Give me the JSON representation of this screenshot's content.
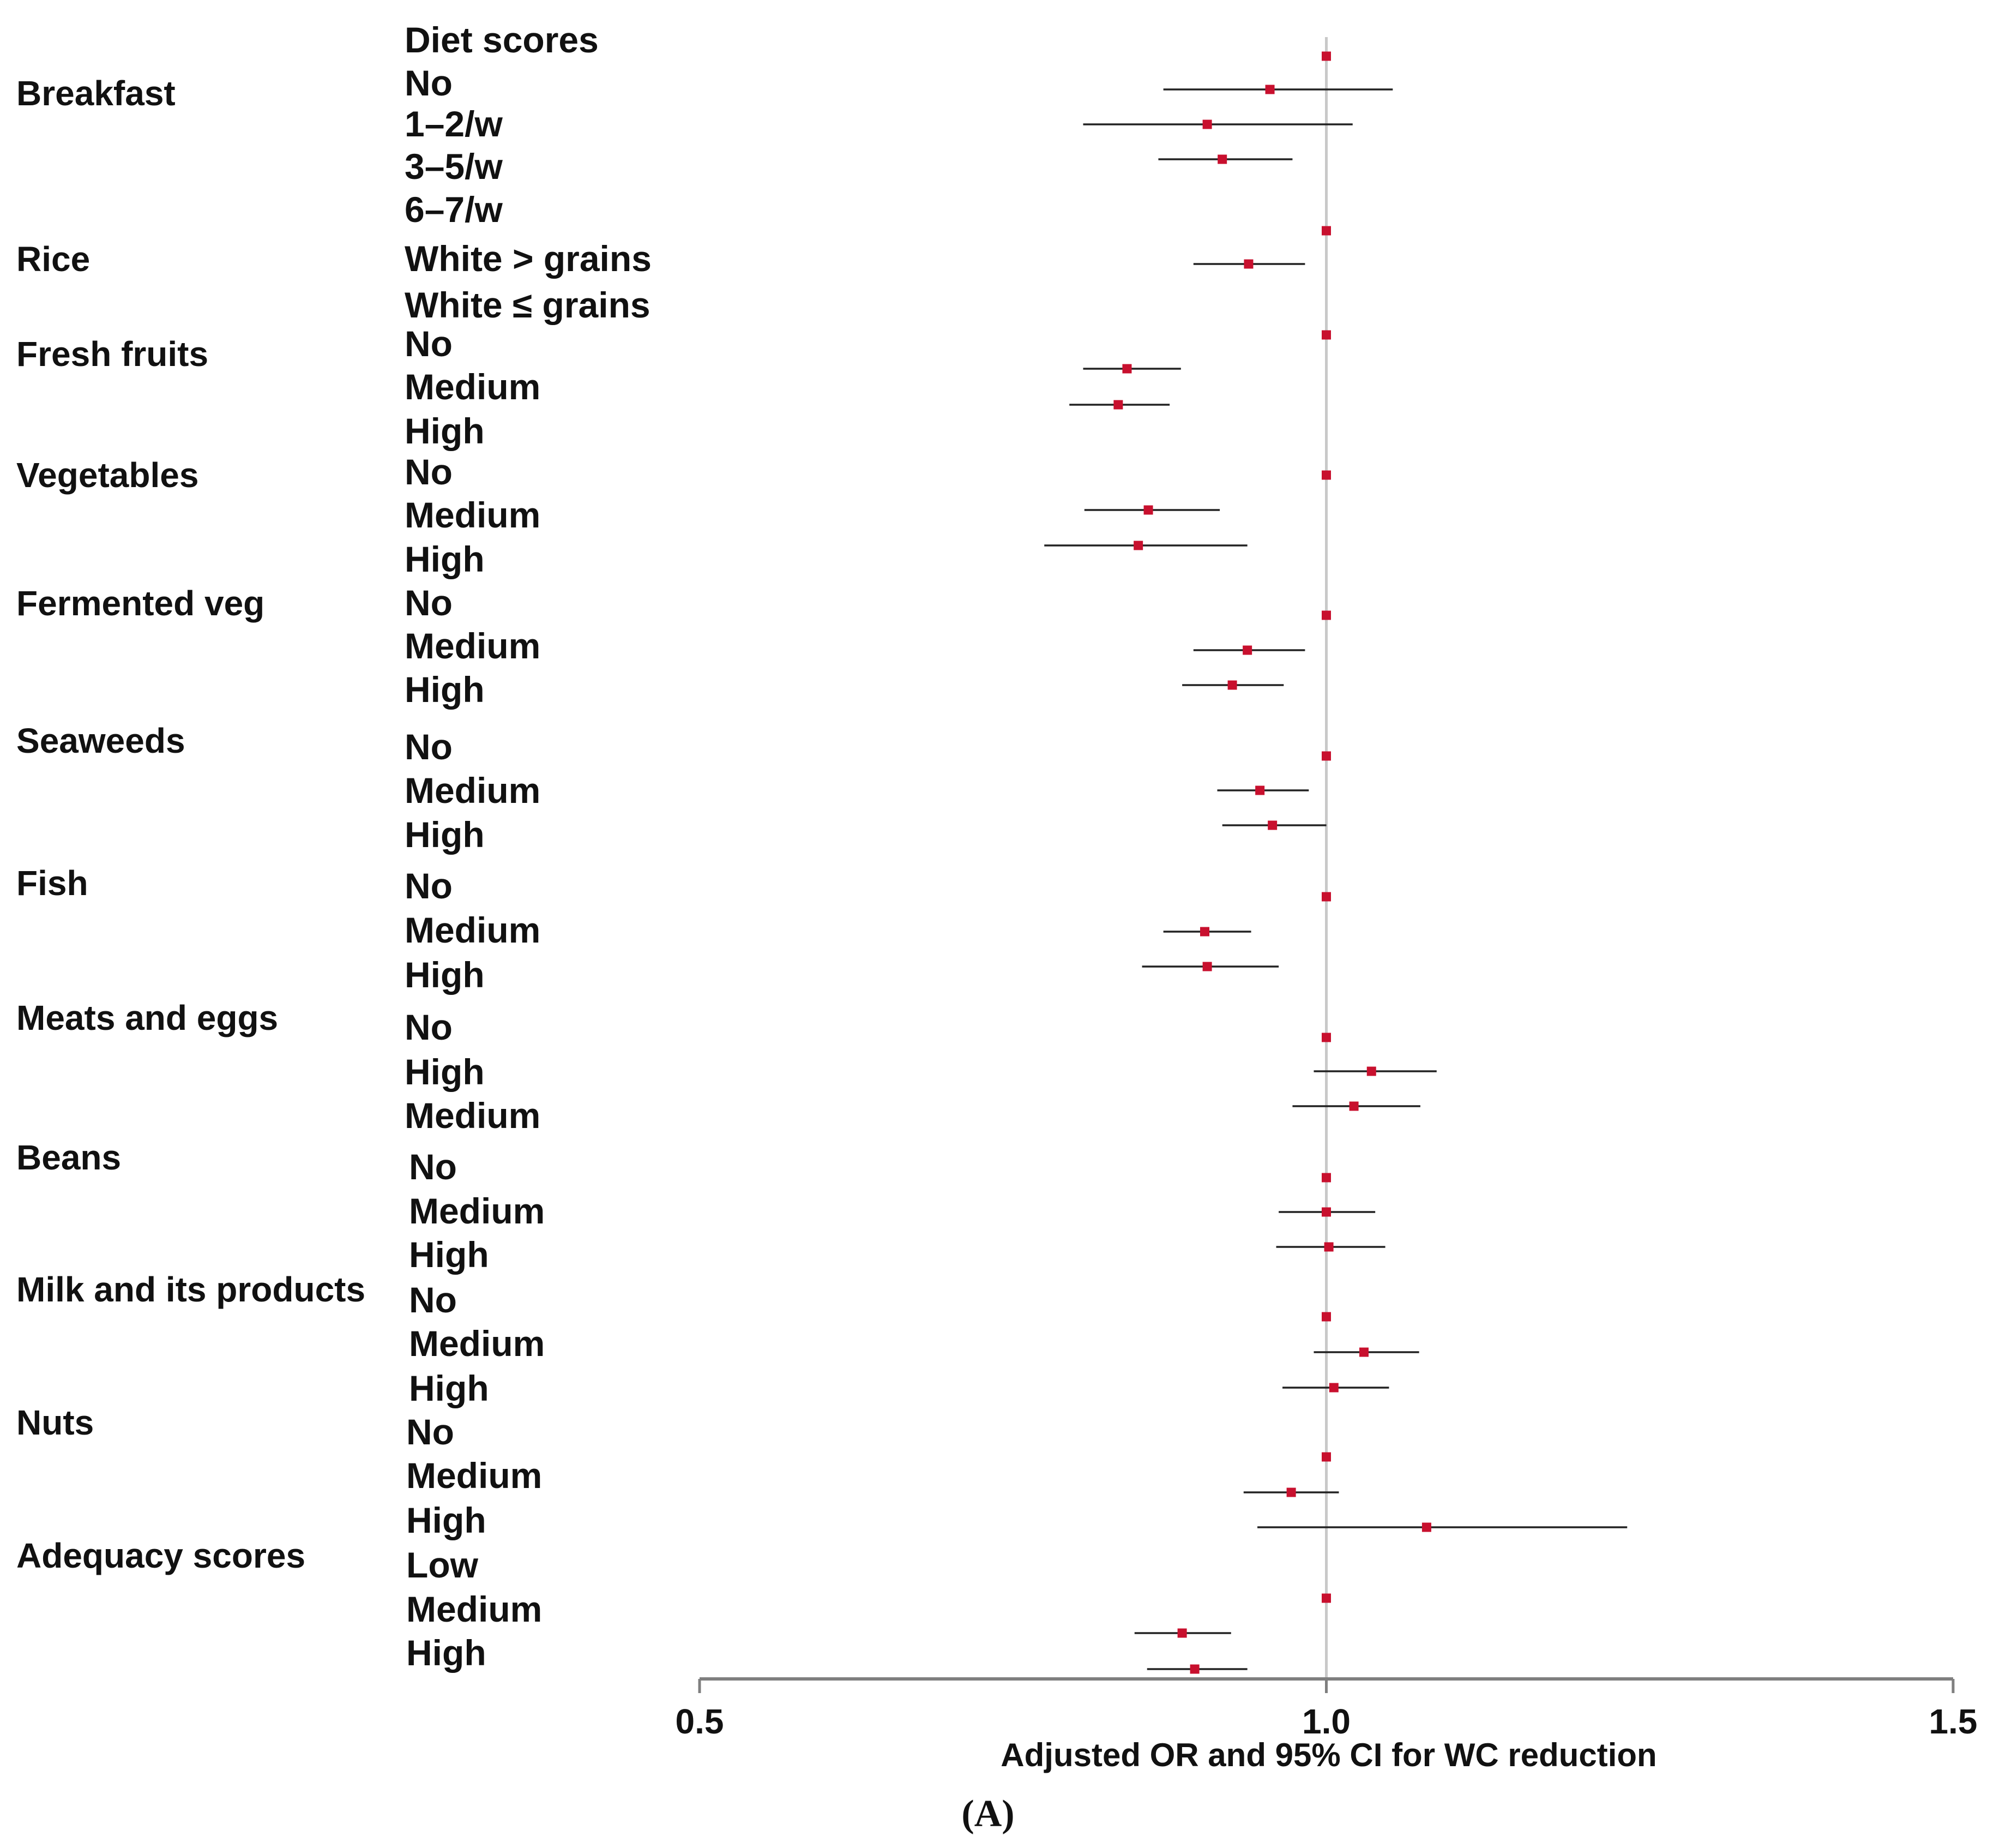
{
  "chart_data": {
    "type": "forest",
    "xlabel": "Adjusted OR and 95% CI for WC reduction",
    "panel_label": "(A)",
    "xlim": [
      0.5,
      1.5
    ],
    "xticks": [
      {
        "value": 0.5,
        "label": "0.5"
      },
      {
        "value": 1.0,
        "label": "1.0"
      },
      {
        "value": 1.5,
        "label": "1.5"
      }
    ],
    "reference_value": 1.0,
    "header": "Diet scores",
    "groups": [
      {
        "name": "Breakfast",
        "levels": [
          "No",
          "1–2/w",
          "3–5/w",
          "6–7/w"
        ]
      },
      {
        "name": "Rice",
        "levels": [
          "White > grains",
          "White ≤ grains"
        ]
      },
      {
        "name": "Fresh fruits",
        "levels": [
          "No",
          "Medium",
          "High"
        ]
      },
      {
        "name": "Vegetables",
        "levels": [
          "No",
          "Medium",
          "High"
        ]
      },
      {
        "name": "Fermented veg",
        "levels": [
          "No",
          "Medium",
          "High"
        ]
      },
      {
        "name": "Seaweeds",
        "levels": [
          "No",
          "Medium",
          "High"
        ]
      },
      {
        "name": "Fish",
        "levels": [
          "No",
          "Medium",
          "High"
        ]
      },
      {
        "name": "Meats and eggs",
        "levels": [
          "No",
          "High",
          "Medium"
        ]
      },
      {
        "name": "Beans",
        "levels": [
          "No",
          "Medium",
          "High"
        ]
      },
      {
        "name": "Milk and its  products",
        "levels": [
          "No",
          "Medium",
          "High"
        ]
      },
      {
        "name": "Nuts",
        "levels": [
          "No",
          "Medium",
          "High"
        ]
      },
      {
        "name": "Adequacy scores",
        "levels": [
          "Low",
          "Medium",
          "High"
        ]
      }
    ],
    "estimates": [
      {
        "group": "Breakfast",
        "or": 1.0,
        "lower": 1.0,
        "upper": 1.0
      },
      {
        "group": "Breakfast",
        "or": 0.955,
        "lower": 0.87,
        "upper": 1.053
      },
      {
        "group": "Breakfast",
        "or": 0.905,
        "lower": 0.806,
        "upper": 1.021
      },
      {
        "group": "Breakfast",
        "or": 0.917,
        "lower": 0.866,
        "upper": 0.973
      },
      {
        "group": "Rice",
        "or": 1.0,
        "lower": 1.0,
        "upper": 1.0
      },
      {
        "group": "Rice",
        "or": 0.938,
        "lower": 0.894,
        "upper": 0.983
      },
      {
        "group": "Fresh fruits",
        "or": 1.0,
        "lower": 1.0,
        "upper": 1.0
      },
      {
        "group": "Fresh fruits",
        "or": 0.841,
        "lower": 0.806,
        "upper": 0.884
      },
      {
        "group": "Fresh fruits",
        "or": 0.834,
        "lower": 0.795,
        "upper": 0.875
      },
      {
        "group": "Vegetables",
        "or": 1.0,
        "lower": 1.0,
        "upper": 1.0
      },
      {
        "group": "Vegetables",
        "or": 0.858,
        "lower": 0.807,
        "upper": 0.915
      },
      {
        "group": "Vegetables",
        "or": 0.85,
        "lower": 0.775,
        "upper": 0.937
      },
      {
        "group": "Fermented veg",
        "or": 1.0,
        "lower": 1.0,
        "upper": 1.0
      },
      {
        "group": "Fermented veg",
        "or": 0.937,
        "lower": 0.894,
        "upper": 0.983
      },
      {
        "group": "Fermented veg",
        "or": 0.925,
        "lower": 0.885,
        "upper": 0.966
      },
      {
        "group": "Seaweeds",
        "or": 1.0,
        "lower": 1.0,
        "upper": 1.0
      },
      {
        "group": "Seaweeds",
        "or": 0.947,
        "lower": 0.913,
        "upper": 0.986
      },
      {
        "group": "Seaweeds",
        "or": 0.957,
        "lower": 0.917,
        "upper": 1.0
      },
      {
        "group": "Fish",
        "or": 1.0,
        "lower": 1.0,
        "upper": 1.0
      },
      {
        "group": "Fish",
        "or": 0.903,
        "lower": 0.87,
        "upper": 0.94
      },
      {
        "group": "Fish",
        "or": 0.905,
        "lower": 0.853,
        "upper": 0.962
      },
      {
        "group": "Meats and eggs",
        "or": 1.0,
        "lower": 1.0,
        "upper": 1.0
      },
      {
        "group": "Meats and eggs",
        "or": 1.036,
        "lower": 0.99,
        "upper": 1.088
      },
      {
        "group": "Meats and eggs",
        "or": 1.022,
        "lower": 0.973,
        "upper": 1.075
      },
      {
        "group": "Beans",
        "or": 1.0,
        "lower": 1.0,
        "upper": 1.0
      },
      {
        "group": "Beans",
        "or": 1.0,
        "lower": 0.962,
        "upper": 1.039
      },
      {
        "group": "Beans",
        "or": 1.002,
        "lower": 0.96,
        "upper": 1.047
      },
      {
        "group": "Milk and its  products",
        "or": 1.0,
        "lower": 1.0,
        "upper": 1.0
      },
      {
        "group": "Milk and its  products",
        "or": 1.03,
        "lower": 0.99,
        "upper": 1.074
      },
      {
        "group": "Milk and its  products",
        "or": 1.006,
        "lower": 0.965,
        "upper": 1.05
      },
      {
        "group": "Nuts",
        "or": 1.0,
        "lower": 1.0,
        "upper": 1.0
      },
      {
        "group": "Nuts",
        "or": 0.972,
        "lower": 0.934,
        "upper": 1.01
      },
      {
        "group": "Nuts",
        "or": 1.08,
        "lower": 0.945,
        "upper": 1.24
      },
      {
        "group": "Adequacy scores",
        "or": 1.0,
        "lower": 1.0,
        "upper": 1.0
      },
      {
        "group": "Adequacy scores",
        "or": 0.885,
        "lower": 0.847,
        "upper": 0.924
      },
      {
        "group": "Adequacy scores",
        "or": 0.895,
        "lower": 0.857,
        "upper": 0.937
      }
    ],
    "colors": {
      "marker": "#c8102e",
      "ci_line": "#222222",
      "reference_line": "#c8c8c8",
      "axis": "#7f7f7f",
      "text": "#111111"
    }
  }
}
